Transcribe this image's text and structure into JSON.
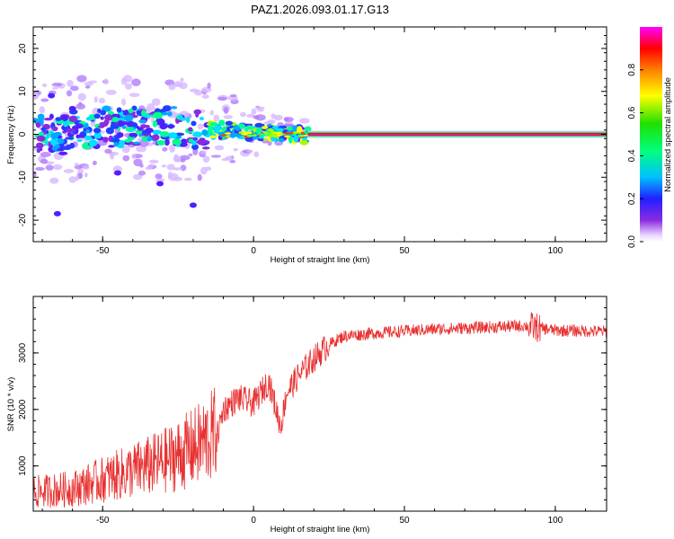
{
  "chart_data": [
    {
      "type": "heatmap",
      "title": "PAZ1.2026.093.01.17.G13",
      "xlabel": "Height of straight line (km)",
      "ylabel": "Frequency (Hz)",
      "xlim": [
        -73,
        117
      ],
      "ylim": [
        -25,
        25
      ],
      "xticks": [
        -50,
        0,
        50,
        100
      ],
      "yticks": [
        -20,
        -10,
        0,
        10,
        20
      ],
      "colorbar": {
        "label": "Normalized spectral amplitude",
        "range": [
          0,
          1
        ],
        "ticks": [
          0.0,
          0.2,
          0.4,
          0.6,
          0.8
        ]
      },
      "features": {
        "scatter_band": {
          "x": [
            -73,
            18
          ],
          "freq_spread_hz": [
            -15,
            10
          ]
        },
        "tone_line": {
          "x": [
            18,
            117
          ],
          "freq_hz": 0,
          "amplitude": 1.0
        }
      }
    },
    {
      "type": "line",
      "xlabel": "Height of straight line (km)",
      "ylabel": "SNR (10 * v/v)",
      "xlim": [
        -73,
        117
      ],
      "ylim": [
        200,
        4000
      ],
      "xticks": [
        -50,
        0,
        50,
        100
      ],
      "yticks": [
        1000,
        2000,
        3000
      ],
      "series": [
        {
          "name": "SNR",
          "color": "#e83030",
          "envelope_x": [
            -73,
            -60,
            -45,
            -30,
            -20,
            -13,
            -10,
            -5,
            0,
            5,
            9,
            11,
            15,
            20,
            25,
            30,
            40,
            60,
            90,
            100,
            117
          ],
          "envelope_y": [
            450,
            500,
            700,
            900,
            1100,
            1300,
            2000,
            2200,
            2100,
            2500,
            1700,
            2300,
            2600,
            2900,
            3150,
            3300,
            3350,
            3420,
            3480,
            3400,
            3380
          ]
        }
      ]
    }
  ]
}
